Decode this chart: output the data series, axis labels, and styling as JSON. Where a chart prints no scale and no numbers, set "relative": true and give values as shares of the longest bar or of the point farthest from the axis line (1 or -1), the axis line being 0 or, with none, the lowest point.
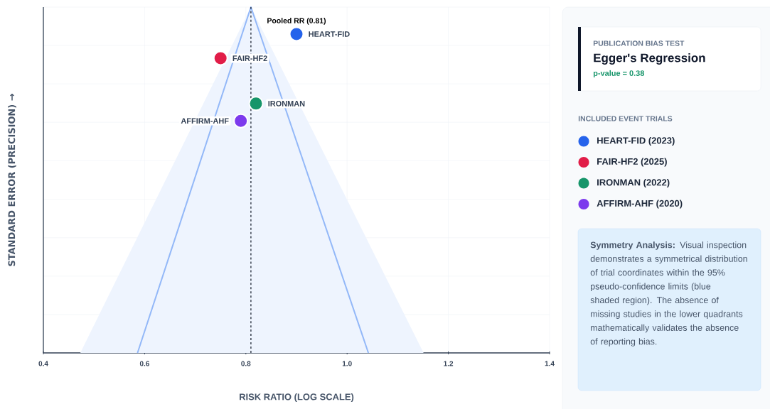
{
  "chart_data": {
    "type": "scatter",
    "relative": true,
    "xlabel": "RISK RATIO (LOG SCALE)",
    "ylabel": "STANDARD ERROR (PRECISION) →",
    "legend_title": "INCLUDED EVENT TRIALS",
    "legend": "right",
    "grid": true,
    "tick_labels": "x",
    "xlim": [
      0.4,
      1.4
    ],
    "xticks": [
      0.4,
      0.6,
      0.8,
      {
        "value": 1.0,
        "label": "1.0"
      },
      1.2,
      1.4
    ],
    "series": [
      {
        "type": "area",
        "marker": "none",
        "color": "#eef4fe",
        "x": [
          0.473,
          0.81,
          1.151
        ],
        "values": [
          0,
          1,
          0
        ]
      },
      {
        "type": "line",
        "marker": "none",
        "color": "#93b8f8",
        "line_style": "solid",
        "x": [
          0.586,
          0.81,
          1.042
        ],
        "values": [
          0,
          1,
          0
        ]
      },
      {
        "name": "HEART-FID (2023)",
        "marker": "circle",
        "color": "#2563eb",
        "x": [
          0.9
        ],
        "values": [
          0.922
        ]
      },
      {
        "name": "FAIR-HF2 (2025)",
        "marker": "circle",
        "color": "#e11d48",
        "x": [
          0.75
        ],
        "values": [
          0.852
        ]
      },
      {
        "name": "IRONMAN (2022)",
        "marker": "circle",
        "color": "#16956a",
        "x": [
          0.82
        ],
        "values": [
          0.721
        ]
      },
      {
        "name": "AFFIRM-AHF (2020)",
        "marker": "circle",
        "color": "#7c3aed",
        "x": [
          0.79
        ],
        "values": [
          0.671
        ]
      }
    ],
    "ref_lines": [
      {
        "axis": "x",
        "value": 0.81,
        "label": "Pooled RR (0.81)",
        "color": "#111827",
        "line_style": "dashed"
      }
    ],
    "annotations": [
      "PUBLICATION BIAS TEST",
      "Egger's Regression",
      "p-value = 0.38",
      "**Symmetry Analysis:** Visual inspection demonstrates a symmetrical distribution of trial coordinates within the 95% pseudo-confidence limits (blue shaded region). The absence of missing studies in the lower quadrants mathematically validates the absence of reporting bias.",
      {
        "text": "HEART-FID",
        "x": 0.9,
        "y": 0.922
      },
      {
        "text": "FAIR-HF2",
        "x": 0.75,
        "y": 0.852
      },
      {
        "text": "IRONMAN",
        "x": 0.82,
        "y": 0.721
      },
      {
        "text": "AFFIRM-AHF",
        "x": 0.79,
        "y": 0.671
      }
    ]
  }
}
